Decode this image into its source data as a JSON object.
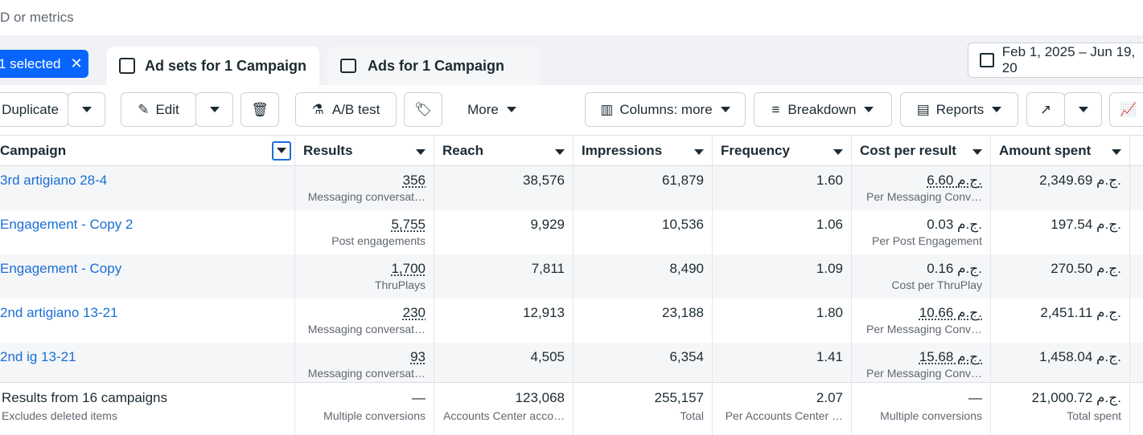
{
  "search": {
    "placeholder": "D or metrics"
  },
  "tabs": {
    "selected": "1 selected",
    "items": [
      "Ad sets for 1 Campaign",
      "Ads for 1 Campaign"
    ]
  },
  "date_range": "Feb 1, 2025 – Jun 19, 20",
  "toolbar": {
    "duplicate": "Duplicate",
    "edit": "Edit",
    "ab_test": "A/B test",
    "more": "More",
    "columns": "Columns: more",
    "breakdown": "Breakdown",
    "reports": "Reports"
  },
  "table": {
    "columns": [
      "Campaign",
      "Results",
      "Reach",
      "Impressions",
      "Frequency",
      "Cost per result",
      "Amount spent"
    ],
    "rows": [
      [
        "3rd artigiano 28-4",
        "356",
        "Messaging conversat…",
        "38,576",
        "61,879",
        "1.60",
        "6.60 ج.م.",
        "Per Messaging Conv…",
        "2,349.69 ج.م."
      ],
      [
        "Engagement - Copy 2",
        "5,755",
        "Post engagements",
        "9,929",
        "10,536",
        "1.06",
        "0.03 ج.م.",
        "Per Post Engagement",
        "197.54 ج.م."
      ],
      [
        "Engagement - Copy",
        "1,700",
        "ThruPlays",
        "7,811",
        "8,490",
        "1.09",
        "0.16 ج.م.",
        "Cost per ThruPlay",
        "270.50 ج.م."
      ],
      [
        "2nd artigiano 13-21",
        "230",
        "Messaging conversat…",
        "12,913",
        "23,188",
        "1.80",
        "10.66 ج.م.",
        "Per Messaging Conv…",
        "2,451.11 ج.م."
      ],
      [
        "2nd ig 13-21",
        "93",
        "Messaging conversat…",
        "4,505",
        "6,354",
        "1.41",
        "15.68 ج.م.",
        "Per Messaging Conv…",
        "1,458.04 ج.م."
      ]
    ],
    "summary": {
      "title": "Results from 16 campaigns",
      "subtitle": "Excludes deleted items",
      "cells": [
        [
          "—",
          "Multiple conversions"
        ],
        [
          "123,068",
          "Accounts Center acco…"
        ],
        [
          "255,157",
          "Total"
        ],
        [
          "2.07",
          "Per Accounts Center …"
        ],
        [
          "—",
          "Multiple conversions"
        ],
        [
          "21,000.72 ج.م.",
          "Total spent"
        ]
      ]
    }
  }
}
